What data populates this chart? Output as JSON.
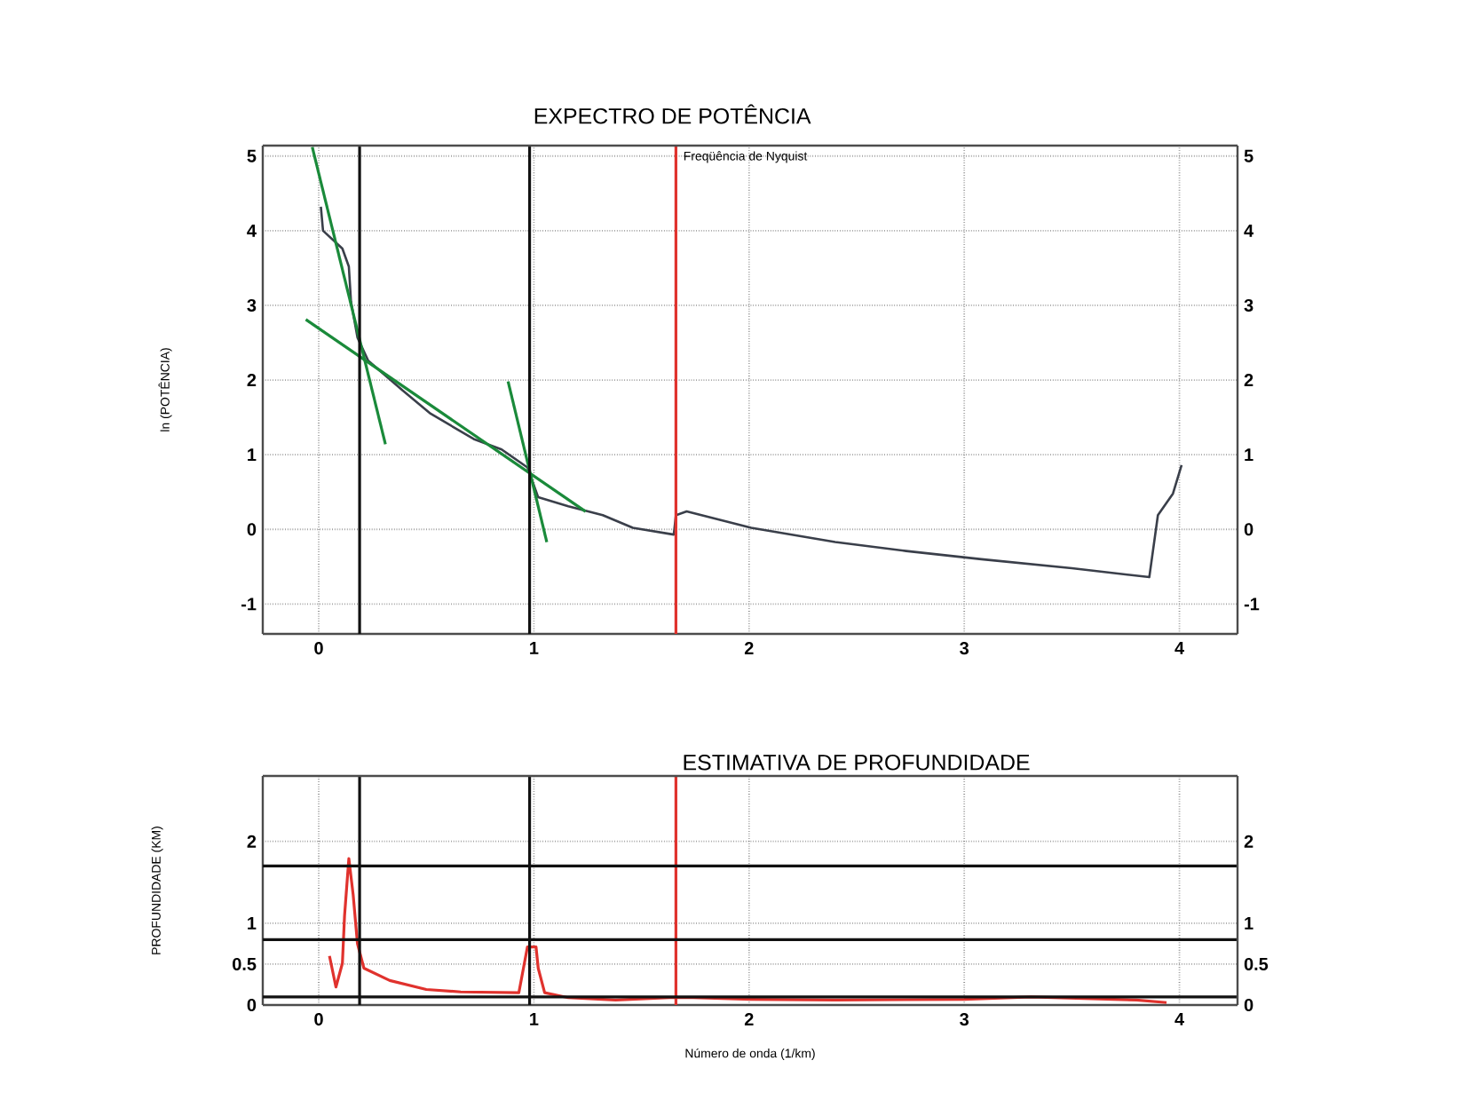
{
  "chart_data": [
    {
      "type": "line",
      "title": "EXPECTRO DE POTÊNCIA",
      "ylabel": "ln (POTÊNCIA)",
      "xlim": [
        -0.26,
        4.27
      ],
      "xticks": [
        0,
        1,
        2,
        3,
        4
      ],
      "ylim": [
        -1.4,
        5.14
      ],
      "yticks": [
        -1,
        0,
        1,
        2,
        3,
        4,
        5
      ],
      "y2lim": [
        -1.4,
        5.14
      ],
      "y2ticks": [
        -1,
        0,
        1,
        2,
        3,
        4,
        5
      ],
      "grid": true,
      "series": [
        {
          "color": "#3a3f4a",
          "x": [
            0.01,
            0.02,
            0.11,
            0.14,
            0.15,
            0.18,
            0.23,
            0.39,
            0.52,
            0.72,
            0.85,
            0.97,
            0.99,
            1.02,
            1.16,
            1.32,
            1.46,
            1.65,
            1.66,
            1.71,
            2.01,
            2.4,
            2.73,
            3.08,
            3.5,
            3.86,
            3.9,
            3.97,
            4.01
          ],
          "values": [
            4.32,
            4.0,
            3.76,
            3.52,
            3.05,
            2.57,
            2.26,
            1.86,
            1.55,
            1.21,
            1.07,
            0.83,
            0.67,
            0.43,
            0.31,
            0.19,
            0.02,
            -0.07,
            0.19,
            0.24,
            0.02,
            -0.17,
            -0.29,
            -0.4,
            -0.52,
            -0.64,
            0.19,
            0.48,
            0.86
          ]
        },
        {
          "color": "#1a8a3a",
          "x": [
            -0.03,
            0.31
          ],
          "values": [
            5.12,
            1.14
          ]
        },
        {
          "color": "#1a8a3a",
          "x": [
            -0.06,
            1.24
          ],
          "values": [
            2.81,
            0.24
          ]
        },
        {
          "color": "#1a8a3a",
          "x": [
            0.88,
            1.06
          ],
          "values": [
            1.98,
            -0.17
          ]
        }
      ],
      "ref_lines": [
        {
          "axis": "x",
          "value": 0.19,
          "color": "#111111"
        },
        {
          "axis": "x",
          "value": 0.98,
          "color": "#111111"
        },
        {
          "axis": "x",
          "value": 1.66,
          "color": "#e0322d",
          "label": "Freqüência de Nyquist"
        }
      ]
    },
    {
      "type": "line",
      "title": "ESTIMATIVA DE PROFUNDIDADE",
      "xlabel": "Número de onda (1/km)",
      "ylabel": "PROFUNDIDADE (KM)",
      "xlim": [
        -0.26,
        4.27
      ],
      "xticks": [
        0,
        1,
        2,
        3,
        4
      ],
      "ylim": [
        0,
        2.8
      ],
      "yticks": [
        0,
        0.5,
        1,
        2
      ],
      "y2lim": [
        0,
        2.8
      ],
      "y2ticks": [
        0,
        0.5,
        1,
        2
      ],
      "grid": true,
      "series": [
        {
          "color": "#e0322d",
          "x": [
            0.05,
            0.08,
            0.11,
            0.12,
            0.14,
            0.16,
            0.18,
            0.21,
            0.33,
            0.5,
            0.66,
            0.93,
            0.97,
            1.01,
            1.02,
            1.05,
            1.16,
            1.38,
            1.63,
            1.74,
            2.01,
            2.4,
            3.0,
            3.31,
            3.8,
            3.94
          ],
          "values": [
            0.6,
            0.22,
            0.51,
            1.09,
            1.79,
            1.35,
            0.75,
            0.45,
            0.3,
            0.19,
            0.16,
            0.15,
            0.71,
            0.71,
            0.45,
            0.15,
            0.09,
            0.06,
            0.09,
            0.09,
            0.07,
            0.06,
            0.07,
            0.1,
            0.06,
            0.03
          ]
        }
      ],
      "ref_lines": [
        {
          "axis": "x",
          "value": 0.19,
          "color": "#111111"
        },
        {
          "axis": "x",
          "value": 0.98,
          "color": "#111111"
        },
        {
          "axis": "x",
          "value": 1.66,
          "color": "#e0322d"
        },
        {
          "axis": "y",
          "value": 1.7,
          "color": "#111111"
        },
        {
          "axis": "y",
          "value": 0.8,
          "color": "#111111"
        },
        {
          "axis": "y",
          "value": 0.1,
          "color": "#111111"
        }
      ]
    }
  ]
}
